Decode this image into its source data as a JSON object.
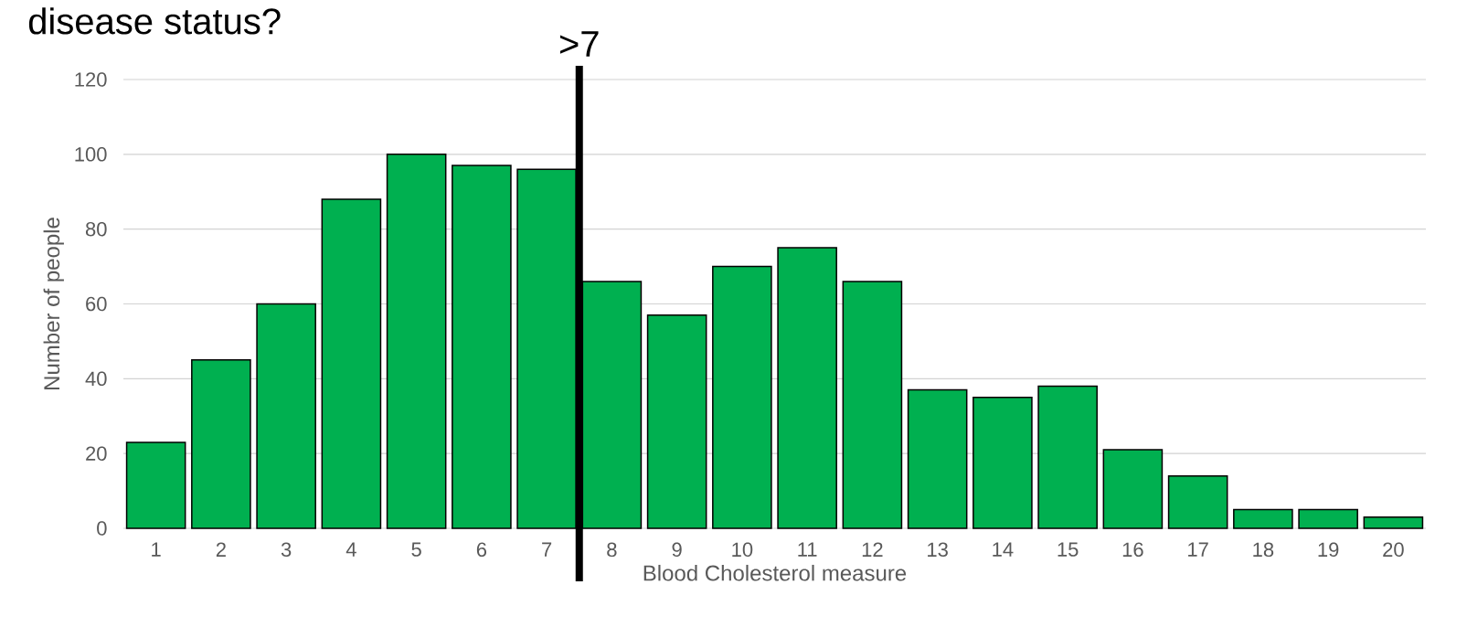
{
  "chart_data": {
    "type": "bar",
    "title": "disease status?",
    "xlabel": "Blood Cholesterol measure",
    "ylabel": "Number of people",
    "x": [
      1,
      2,
      3,
      4,
      5,
      6,
      7,
      8,
      9,
      10,
      11,
      12,
      13,
      14,
      15,
      16,
      17,
      18,
      19,
      20
    ],
    "values": [
      23,
      45,
      60,
      88,
      100,
      97,
      96,
      66,
      57,
      70,
      75,
      66,
      37,
      35,
      38,
      21,
      14,
      5,
      5,
      3
    ],
    "color": "#00b050",
    "xlim": [
      0.5,
      20.5
    ],
    "xticks": [
      1,
      2,
      3,
      4,
      5,
      6,
      7,
      8,
      9,
      10,
      11,
      12,
      13,
      14,
      15,
      16,
      17,
      18,
      19,
      20
    ],
    "ylim": [
      0,
      120
    ],
    "yticks": [
      0,
      20,
      40,
      60,
      80,
      100,
      120
    ],
    "grid": "y",
    "ref_lines": [
      {
        "axis": "x",
        "value": 7.5,
        "label": ">7",
        "color": "#000000"
      }
    ]
  }
}
